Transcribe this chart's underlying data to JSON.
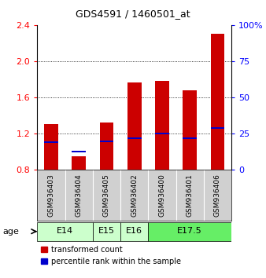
{
  "title": "GDS4591 / 1460501_at",
  "samples": [
    "GSM936403",
    "GSM936404",
    "GSM936405",
    "GSM936402",
    "GSM936400",
    "GSM936401",
    "GSM936406"
  ],
  "transformed_count": [
    1.3,
    0.95,
    1.32,
    1.76,
    1.78,
    1.68,
    2.3
  ],
  "percentile_rank_y": [
    1.1,
    1.0,
    1.11,
    1.15,
    1.2,
    1.15,
    1.26
  ],
  "bar_bottom": 0.8,
  "bar_color": "#cc0000",
  "percentile_color": "#0000cc",
  "ylim": [
    0.8,
    2.4
  ],
  "yticks": [
    0.8,
    1.2,
    1.6,
    2.0,
    2.4
  ],
  "ytick_labels": [
    "0.8",
    "1.2",
    "1.6",
    "2.0",
    "2.4"
  ],
  "y2lim": [
    0,
    100
  ],
  "y2ticks": [
    0,
    25,
    50,
    75,
    100
  ],
  "y2tick_labels": [
    "0",
    "25",
    "50",
    "75",
    "100%"
  ],
  "age_group_spans": [
    {
      "label": "E14",
      "start": 0,
      "end": 2,
      "color": "#ccffcc"
    },
    {
      "label": "E15",
      "start": 2,
      "end": 3,
      "color": "#ccffcc"
    },
    {
      "label": "E16",
      "start": 3,
      "end": 4,
      "color": "#ccffcc"
    },
    {
      "label": "E17.5",
      "start": 4,
      "end": 7,
      "color": "#66ee66"
    }
  ],
  "legend_labels": [
    "transformed count",
    "percentile rank within the sample"
  ],
  "age_label": "age",
  "background_color": "#ffffff",
  "sample_box_color": "#d0d0d0",
  "bar_width": 0.5,
  "percentile_bar_height": 0.018
}
